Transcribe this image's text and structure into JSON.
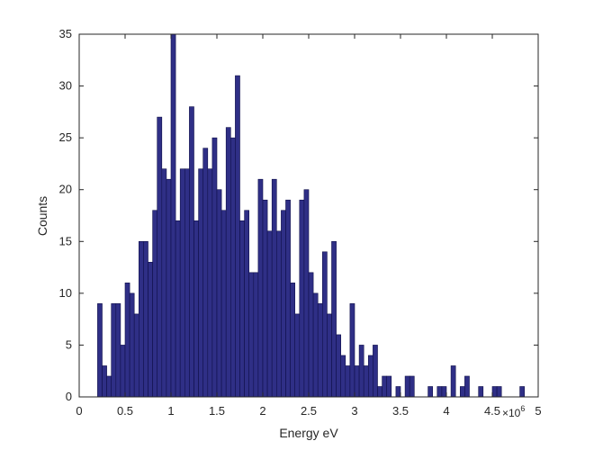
{
  "chart_data": {
    "type": "bar",
    "title": "",
    "xlabel": "Energy eV",
    "ylabel": "Counts",
    "x_multiplier": "×10",
    "x_exponent": "6",
    "xlim": [
      0,
      5
    ],
    "ylim": [
      0,
      35
    ],
    "xticks": [
      "0",
      "0.5",
      "1",
      "1.5",
      "2",
      "2.5",
      "3",
      "3.5",
      "4",
      "4.5",
      "5"
    ],
    "yticks": [
      "0",
      "5",
      "10",
      "15",
      "20",
      "25",
      "30",
      "35"
    ],
    "bar_color": "#2f2f86",
    "bin_width": 0.05,
    "bin_starts": [
      0.2,
      0.25,
      0.3,
      0.35,
      0.4,
      0.45,
      0.5,
      0.55,
      0.6,
      0.65,
      0.7,
      0.75,
      0.8,
      0.85,
      0.9,
      0.95,
      1.0,
      1.05,
      1.1,
      1.15,
      1.2,
      1.25,
      1.3,
      1.35,
      1.4,
      1.45,
      1.5,
      1.55,
      1.6,
      1.65,
      1.7,
      1.75,
      1.8,
      1.85,
      1.9,
      1.95,
      2.0,
      2.05,
      2.1,
      2.15,
      2.2,
      2.25,
      2.3,
      2.35,
      2.4,
      2.45,
      2.5,
      2.55,
      2.6,
      2.65,
      2.7,
      2.75,
      2.8,
      2.85,
      2.9,
      2.95,
      3.0,
      3.05,
      3.1,
      3.15,
      3.2,
      3.25,
      3.3,
      3.35,
      3.45,
      3.55,
      3.6,
      3.8,
      3.9,
      3.95,
      4.05,
      4.15,
      4.2,
      4.35,
      4.5,
      4.55,
      4.8
    ],
    "values": [
      9,
      3,
      2,
      9,
      9,
      5,
      11,
      10,
      8,
      15,
      15,
      13,
      18,
      27,
      22,
      21,
      35,
      17,
      22,
      22,
      28,
      17,
      22,
      24,
      22,
      25,
      20,
      18,
      26,
      25,
      31,
      17,
      18,
      12,
      12,
      21,
      19,
      16,
      21,
      16,
      18,
      19,
      11,
      8,
      19,
      20,
      12,
      10,
      9,
      14,
      8,
      15,
      6,
      4,
      3,
      9,
      3,
      5,
      3,
      4,
      5,
      1,
      2,
      2,
      1,
      2,
      2,
      1,
      1,
      1,
      3,
      1,
      2,
      1,
      1,
      1,
      1
    ]
  }
}
